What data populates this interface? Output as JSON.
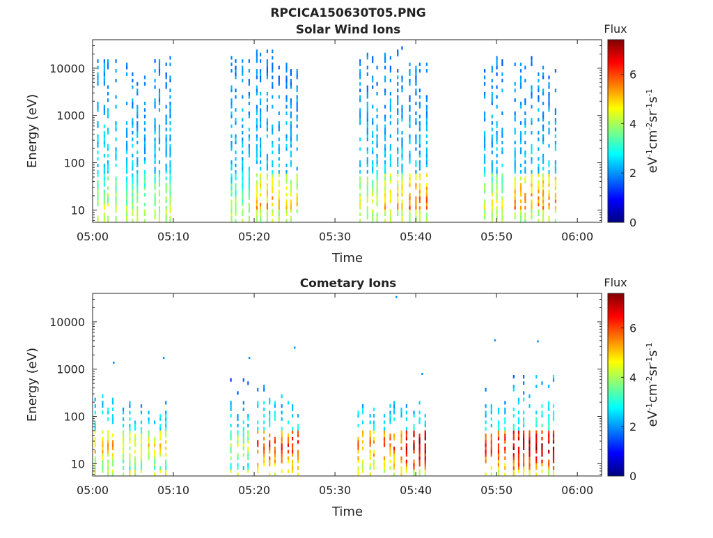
{
  "figure_title": "RPCICA150630T05.PNG",
  "chart_data": [
    {
      "type": "heatmap",
      "title": "Solar Wind Ions",
      "xlabel": "Time",
      "ylabel": "Energy (eV)",
      "x_ticks": [
        "05:00",
        "05:10",
        "05:20",
        "05:30",
        "05:40",
        "05:50",
        "06:00"
      ],
      "xlim_minutes": [
        0,
        63
      ],
      "y_scale": "log",
      "ylim": [
        5.5,
        40000
      ],
      "y_ticks": [
        {
          "value": 10,
          "label": "10"
        },
        {
          "value": 100,
          "label": "100"
        },
        {
          "value": 1000,
          "label": "1000"
        },
        {
          "value": 10000,
          "label": "10000"
        }
      ],
      "colorbar": {
        "title": "Flux",
        "label": "eV-1cm-2sr-1s-1",
        "range": [
          0,
          7.4
        ],
        "ticks": [
          "0",
          "2",
          "4",
          "6"
        ],
        "colormap": "jet"
      },
      "bursts": [
        {
          "t": 1.6,
          "low_flux": 4.2,
          "hi_flux": 2.0,
          "top_energy": 15000
        },
        {
          "t": 5.2,
          "low_flux": 4.0,
          "hi_flux": 1.8,
          "top_energy": 10000
        },
        {
          "t": 8.6,
          "low_flux": 4.2,
          "hi_flux": 1.8,
          "top_energy": 15000
        },
        {
          "t": 18.1,
          "low_flux": 3.9,
          "hi_flux": 1.8,
          "top_energy": 14000
        },
        {
          "t": 21.2,
          "low_flux": 5.4,
          "hi_flux": 1.8,
          "top_energy": 20000
        },
        {
          "t": 24.2,
          "low_flux": 5.0,
          "hi_flux": 1.8,
          "top_energy": 10000
        },
        {
          "t": 34.2,
          "low_flux": 4.6,
          "hi_flux": 1.8,
          "top_energy": 20000
        },
        {
          "t": 37.2,
          "low_flux": 5.2,
          "hi_flux": 1.8,
          "top_energy": 20000
        },
        {
          "t": 40.2,
          "low_flux": 5.9,
          "hi_flux": 1.8,
          "top_energy": 12000
        },
        {
          "t": 49.6,
          "low_flux": 4.6,
          "hi_flux": 1.8,
          "top_energy": 15000
        },
        {
          "t": 53.2,
          "low_flux": 5.6,
          "hi_flux": 1.8,
          "top_energy": 15000
        },
        {
          "t": 56.2,
          "low_flux": 5.6,
          "hi_flux": 1.8,
          "top_energy": 10000
        }
      ]
    },
    {
      "type": "heatmap",
      "title": "Cometary Ions",
      "xlabel": "Time",
      "ylabel": "Energy (eV)",
      "x_ticks": [
        "05:00",
        "05:10",
        "05:20",
        "05:30",
        "05:40",
        "05:50",
        "06:00"
      ],
      "xlim_minutes": [
        0,
        63
      ],
      "y_scale": "log",
      "ylim": [
        5.5,
        40000
      ],
      "y_ticks": [
        {
          "value": 10,
          "label": "10"
        },
        {
          "value": 100,
          "label": "100"
        },
        {
          "value": 1000,
          "label": "1000"
        },
        {
          "value": 10000,
          "label": "10000"
        }
      ],
      "colorbar": {
        "title": "Flux",
        "label": "eV-1cm-2sr-1s-1",
        "range": [
          0,
          7.4
        ],
        "ticks": [
          "0",
          "2",
          "4",
          "6"
        ],
        "colormap": "jet"
      },
      "bursts": [
        {
          "t": 1.4,
          "low_flux": 5.2,
          "hi_flux": 3.0,
          "top_energy": 300
        },
        {
          "t": 4.8,
          "low_flux": 4.6,
          "hi_flux": 2.8,
          "top_energy": 220
        },
        {
          "t": 8.0,
          "low_flux": 4.8,
          "hi_flux": 2.8,
          "top_energy": 150
        },
        {
          "t": 18.2,
          "low_flux": 4.2,
          "hi_flux": 2.6,
          "top_energy": 500
        },
        {
          "t": 21.4,
          "low_flux": 6.2,
          "hi_flux": 3.0,
          "top_energy": 600
        },
        {
          "t": 24.4,
          "low_flux": 6.2,
          "hi_flux": 2.8,
          "top_energy": 250
        },
        {
          "t": 33.8,
          "low_flux": 5.6,
          "hi_flux": 2.8,
          "top_energy": 150
        },
        {
          "t": 37.0,
          "low_flux": 6.0,
          "hi_flux": 2.8,
          "top_energy": 250
        },
        {
          "t": 40.0,
          "low_flux": 7.0,
          "hi_flux": 2.8,
          "top_energy": 160
        },
        {
          "t": 49.8,
          "low_flux": 6.4,
          "hi_flux": 2.8,
          "top_energy": 300
        },
        {
          "t": 53.0,
          "low_flux": 7.0,
          "hi_flux": 3.0,
          "top_energy": 700
        },
        {
          "t": 56.0,
          "low_flux": 7.0,
          "hi_flux": 3.2,
          "top_energy": 700
        }
      ],
      "isolated_points": [
        {
          "t": 2.5,
          "energy": 1350,
          "flux": 2.0
        },
        {
          "t": 8.7,
          "energy": 1700,
          "flux": 2.0
        },
        {
          "t": 19.3,
          "energy": 1700,
          "flux": 2.0
        },
        {
          "t": 24.9,
          "energy": 2800,
          "flux": 2.0
        },
        {
          "t": 37.5,
          "energy": 33000,
          "flux": 2.0
        },
        {
          "t": 40.7,
          "energy": 780,
          "flux": 2.0
        },
        {
          "t": 49.7,
          "energy": 4000,
          "flux": 2.0
        },
        {
          "t": 55.0,
          "energy": 3800,
          "flux": 2.0
        }
      ]
    }
  ]
}
